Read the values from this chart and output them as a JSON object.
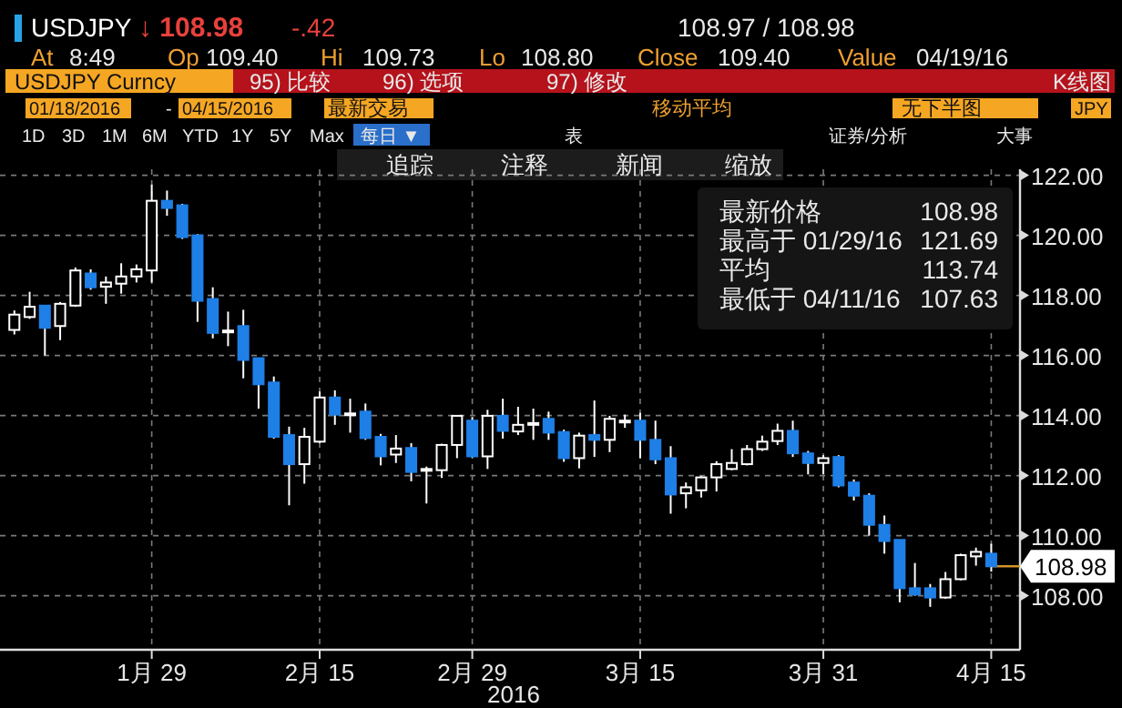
{
  "chart_data": {
    "type": "candlestick",
    "title": "USDJPY",
    "xlabel": "2016",
    "categories": [
      null,
      null,
      null,
      null,
      null,
      null,
      null,
      null,
      null,
      "1月 29",
      null,
      null,
      null,
      null,
      null,
      null,
      null,
      null,
      null,
      null,
      "2月 15",
      null,
      null,
      null,
      null,
      null,
      null,
      null,
      null,
      null,
      "2月 29",
      null,
      null,
      null,
      null,
      null,
      null,
      null,
      null,
      null,
      null,
      "3月 15",
      null,
      null,
      null,
      null,
      null,
      null,
      null,
      null,
      null,
      null,
      null,
      "3月 31",
      null,
      null,
      null,
      null,
      null,
      null,
      null,
      null,
      null,
      null,
      "4月 15"
    ],
    "ohlc": [
      [
        116.85,
        117.5,
        116.7,
        117.36
      ],
      [
        117.28,
        118.12,
        117.22,
        117.62
      ],
      [
        117.66,
        117.66,
        116.0,
        116.92
      ],
      [
        116.98,
        117.78,
        116.51,
        117.72
      ],
      [
        117.66,
        118.93,
        117.62,
        118.83
      ],
      [
        118.73,
        118.87,
        118.19,
        118.27
      ],
      [
        118.29,
        118.63,
        117.72,
        118.43
      ],
      [
        118.39,
        119.07,
        118.06,
        118.63
      ],
      [
        118.63,
        119.03,
        118.43,
        118.87
      ],
      [
        118.83,
        121.69,
        118.43,
        121.15
      ],
      [
        121.15,
        121.49,
        120.65,
        120.91
      ],
      [
        121.0,
        121.05,
        119.88,
        119.94
      ],
      [
        120.0,
        120.04,
        117.12,
        117.82
      ],
      [
        117.88,
        118.27,
        116.57,
        116.75
      ],
      [
        116.81,
        117.46,
        116.31,
        116.83
      ],
      [
        116.98,
        117.52,
        115.24,
        115.85
      ],
      [
        115.91,
        115.91,
        114.23,
        115.04
      ],
      [
        115.1,
        115.3,
        113.23,
        113.29
      ],
      [
        113.35,
        113.63,
        111.01,
        112.38
      ],
      [
        112.38,
        113.59,
        111.73,
        113.29
      ],
      [
        113.13,
        114.8,
        113.08,
        114.6
      ],
      [
        114.6,
        114.84,
        113.69,
        114.03
      ],
      [
        114.05,
        114.56,
        113.43,
        114.07
      ],
      [
        114.13,
        114.4,
        113.19,
        113.25
      ],
      [
        113.29,
        113.39,
        112.34,
        112.64
      ],
      [
        112.7,
        113.35,
        112.42,
        112.9
      ],
      [
        112.92,
        113.08,
        111.81,
        112.12
      ],
      [
        112.2,
        112.3,
        111.07,
        112.22
      ],
      [
        112.18,
        113.06,
        111.92,
        113.02
      ],
      [
        113.02,
        114.0,
        112.58,
        113.99
      ],
      [
        113.83,
        113.95,
        112.6,
        112.64
      ],
      [
        112.64,
        114.19,
        112.22,
        113.99
      ],
      [
        113.99,
        114.56,
        113.23,
        113.49
      ],
      [
        113.47,
        114.29,
        113.35,
        113.69
      ],
      [
        113.73,
        114.23,
        113.19,
        113.75
      ],
      [
        113.89,
        114.13,
        113.19,
        113.43
      ],
      [
        113.45,
        113.53,
        112.46,
        112.58
      ],
      [
        112.58,
        113.43,
        112.24,
        113.33
      ],
      [
        113.35,
        114.5,
        112.62,
        113.19
      ],
      [
        113.19,
        113.99,
        112.78,
        113.89
      ],
      [
        113.81,
        114.03,
        113.59,
        113.83
      ],
      [
        113.83,
        114.09,
        112.58,
        113.19
      ],
      [
        113.19,
        113.83,
        112.38,
        112.54
      ],
      [
        112.58,
        112.98,
        110.73,
        111.37
      ],
      [
        111.41,
        111.77,
        110.91,
        111.61
      ],
      [
        111.51,
        111.98,
        111.27,
        111.94
      ],
      [
        111.94,
        112.48,
        111.47,
        112.38
      ],
      [
        112.22,
        112.88,
        112.18,
        112.42
      ],
      [
        112.38,
        113.02,
        112.34,
        112.88
      ],
      [
        112.88,
        113.33,
        112.82,
        113.13
      ],
      [
        113.15,
        113.73,
        113.02,
        113.49
      ],
      [
        113.49,
        113.83,
        112.62,
        112.74
      ],
      [
        112.74,
        112.82,
        112.04,
        112.42
      ],
      [
        112.42,
        112.68,
        112.04,
        112.58
      ],
      [
        112.62,
        112.68,
        111.61,
        111.67
      ],
      [
        111.77,
        111.87,
        111.17,
        111.33
      ],
      [
        111.33,
        111.41,
        110.0,
        110.36
      ],
      [
        110.36,
        110.67,
        109.4,
        109.82
      ],
      [
        109.86,
        109.86,
        107.78,
        108.25
      ],
      [
        108.25,
        109.09,
        108.0,
        108.04
      ],
      [
        108.25,
        108.39,
        107.63,
        107.94
      ],
      [
        107.94,
        108.79,
        107.9,
        108.55
      ],
      [
        108.55,
        109.4,
        108.51,
        109.35
      ],
      [
        109.31,
        109.6,
        109.0,
        109.46
      ],
      [
        109.4,
        109.73,
        108.8,
        108.98
      ]
    ],
    "colors": [
      "#ffffff",
      "#ffffff",
      "#1e7fe6",
      "#ffffff",
      "#ffffff",
      "#1e7fe6",
      "#ffffff",
      "#ffffff",
      "#ffffff",
      "#ffffff",
      "#1e7fe6",
      "#1e7fe6",
      "#1e7fe6",
      "#1e7fe6",
      "#ffffff",
      "#1e7fe6",
      "#1e7fe6",
      "#1e7fe6",
      "#1e7fe6",
      "#ffffff",
      "#ffffff",
      "#1e7fe6",
      "#ffffff",
      "#1e7fe6",
      "#1e7fe6",
      "#ffffff",
      "#1e7fe6",
      "#ffffff",
      "#ffffff",
      "#ffffff",
      "#1e7fe6",
      "#ffffff",
      "#1e7fe6",
      "#ffffff",
      "#ffffff",
      "#1e7fe6",
      "#1e7fe6",
      "#ffffff",
      "#1e7fe6",
      "#ffffff",
      "#ffffff",
      "#1e7fe6",
      "#1e7fe6",
      "#1e7fe6",
      "#ffffff",
      "#ffffff",
      "#ffffff",
      "#ffffff",
      "#ffffff",
      "#ffffff",
      "#ffffff",
      "#1e7fe6",
      "#1e7fe6",
      "#ffffff",
      "#1e7fe6",
      "#1e7fe6",
      "#1e7fe6",
      "#1e7fe6",
      "#1e7fe6",
      "#1e7fe6",
      "#1e7fe6",
      "#ffffff",
      "#ffffff",
      "#ffffff",
      "#1e7fe6"
    ],
    "ylim": [
      106.2,
      122.2
    ],
    "yticks": [
      {
        "value": 108,
        "label": "108.00"
      },
      {
        "value": 110,
        "label": "110.00"
      },
      {
        "value": 112,
        "label": "112.00"
      },
      {
        "value": 114,
        "label": "114.00"
      },
      {
        "value": 116,
        "label": "116.00"
      },
      {
        "value": 118,
        "label": "118.00"
      },
      {
        "value": 120,
        "label": "120.00"
      },
      {
        "value": 122,
        "label": "122.00"
      }
    ],
    "grid": true,
    "ref_lines": [
      {
        "axis": "y",
        "value": 108.98,
        "label": "108.98",
        "color": "#d9962b"
      }
    ],
    "annotations": [
      "↓ 108.98",
      "-.42",
      "108.97 / 108.98",
      "At",
      "8:49",
      "Op",
      "109.40",
      "Hi",
      "109.73",
      "Lo",
      "108.80",
      "Close",
      "109.40",
      "Value",
      "04/19/16",
      "USDJPY Curncy",
      "95) 比较",
      "96) 选项",
      "97) 修改",
      "K线图",
      "01/18/2016",
      "-",
      "04/15/2016",
      "最新交易",
      "移动平均",
      "无下半图",
      "JPY",
      "1D",
      "3D",
      "1M",
      "6M",
      "YTD",
      "1Y",
      "5Y",
      "Max",
      "每日 ▼",
      "表",
      "证券/分析",
      "大事",
      "追踪",
      "注释",
      "新闻",
      "缩放",
      "最新价格",
      "108.98",
      "最高于 01/29/16",
      "121.69",
      "平均",
      "113.74",
      "最低于 04/11/16",
      "107.63"
    ]
  }
}
